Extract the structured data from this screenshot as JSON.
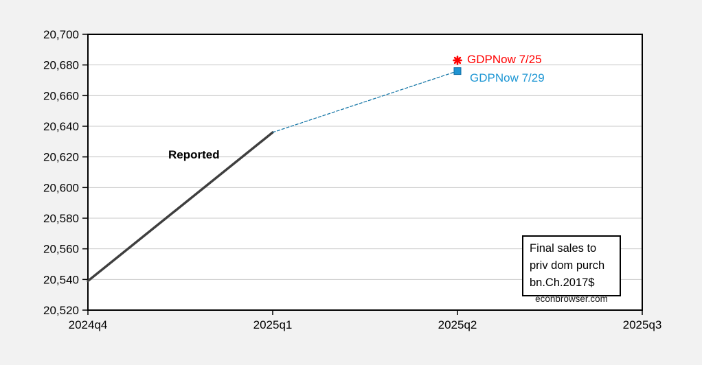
{
  "chart_data": {
    "type": "line",
    "title": "",
    "categories": [
      "2024q4",
      "2025q1",
      "2025q2",
      "2025q3"
    ],
    "y_axis": {
      "min": 20520,
      "max": 20700,
      "step": 20,
      "tick_labels": [
        "20,520",
        "20,540",
        "20,560",
        "20,580",
        "20,600",
        "20,620",
        "20,640",
        "20,660",
        "20,680",
        "20,700"
      ]
    },
    "grid": "horizontal",
    "legend_position": "none",
    "background": "#f2f2f2",
    "plot_background": "#ffffff",
    "grid_color": "#c8c8c8",
    "border_color": "#000000",
    "series": [
      {
        "name": "Reported",
        "points": [
          {
            "x": "2024q4",
            "y": 20539
          },
          {
            "x": "2025q1",
            "y": 20636
          }
        ],
        "color": "#3f3f3f",
        "line_style": "solid",
        "line_width": 3.5,
        "marker": "none",
        "marker_points": []
      },
      {
        "name": "GDPNow 7/29",
        "points": [
          {
            "x": "2025q1",
            "y": 20636
          },
          {
            "x": "2025q2",
            "y": 20676
          }
        ],
        "color": "#1878a8",
        "line_style": "dashed",
        "line_width": 1.3,
        "marker": "square",
        "marker_color": "#1f94d2",
        "marker_border": "#0d6ca3",
        "marker_points": [
          "2025q2"
        ]
      },
      {
        "name": "GDPNow 7/25",
        "points": [
          {
            "x": "2025q2",
            "y": 20683
          }
        ],
        "color": "#ff0000",
        "line_style": "none",
        "line_width": 0,
        "marker": "asterisk",
        "marker_color": "#ff0000",
        "marker_points": [
          "2025q2"
        ]
      }
    ],
    "annotations": {
      "reported_label": "Reported",
      "gdpnow_725_label": "GDPNow 7/25",
      "gdpnow_725_color": "#ff0000",
      "gdpnow_729_label": "GDPNow 7/29",
      "gdpnow_729_color": "#1f97d4",
      "note_box_lines": [
        "Final sales to",
        "priv dom purch",
        "bn.Ch.2017$"
      ],
      "watermark": "econbrowser.com"
    }
  }
}
